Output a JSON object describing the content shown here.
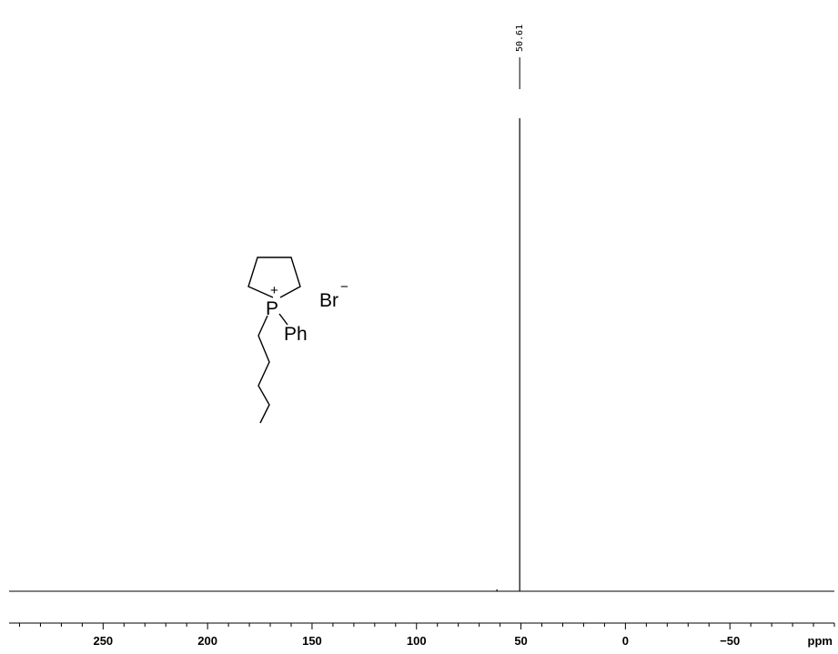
{
  "chart_data": {
    "type": "line",
    "title": "",
    "xlabel": "",
    "ylabel": "",
    "x_unit": "ppm",
    "xlim": [
      295,
      -100
    ],
    "x_axis_reversed": true,
    "grid": false,
    "ticks": [
      {
        "value": 250,
        "label": "250"
      },
      {
        "value": 200,
        "label": "200"
      },
      {
        "value": 150,
        "label": "150"
      },
      {
        "value": 100,
        "label": "100"
      },
      {
        "value": 50,
        "label": "50"
      },
      {
        "value": 0,
        "label": "0"
      },
      {
        "value": -50,
        "label": "−50"
      }
    ],
    "minor_tick_step": 10,
    "peaks": [
      {
        "ppm": 50.61,
        "label": "50.61",
        "relative_height": 1.0
      },
      {
        "ppm": 61.5,
        "label": "",
        "relative_height": 0.004
      }
    ]
  },
  "structure": {
    "cation_charge": "+",
    "phosphorus": "P",
    "substituent": "Ph",
    "counterion": "Br",
    "counterion_charge": "−"
  }
}
